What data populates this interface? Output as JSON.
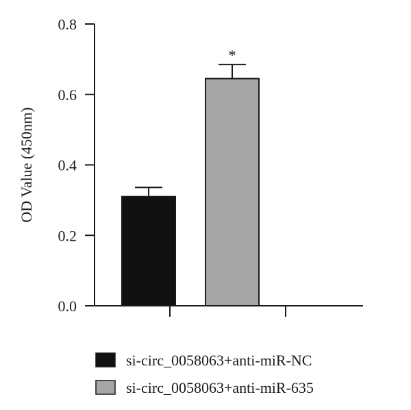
{
  "chart_data": {
    "type": "bar",
    "title": "",
    "xlabel": "",
    "ylabel": "OD Value (450nm)",
    "ylim": [
      0,
      0.8
    ],
    "yticks": [
      0.0,
      0.2,
      0.4,
      0.6,
      0.8
    ],
    "ytick_labels": [
      "0.0",
      "0.2",
      "0.4",
      "0.6",
      "0.8"
    ],
    "grid": false,
    "legend_position": "bottom",
    "series": [
      {
        "name": "si-circ_0058063+anti-miR-NC",
        "value": 0.31,
        "error": 0.026,
        "color": "#111111",
        "annotation": ""
      },
      {
        "name": "si-circ_0058063+anti-miR-635",
        "value": 0.645,
        "error": 0.04,
        "color": "#a6a6a6",
        "annotation": "*"
      }
    ]
  }
}
